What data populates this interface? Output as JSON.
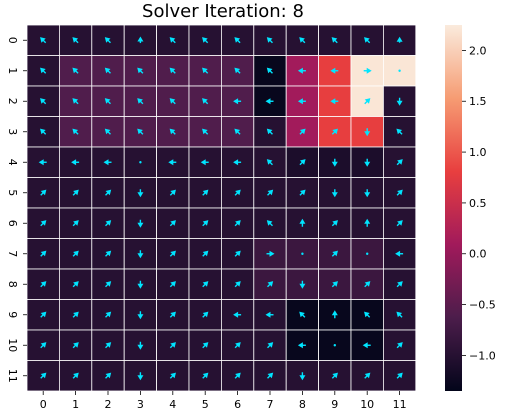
{
  "chart_data": {
    "type": "heatmap",
    "title": "Solver Iteration: 8",
    "x_categories": [
      "0",
      "1",
      "2",
      "3",
      "4",
      "5",
      "6",
      "7",
      "8",
      "9",
      "10",
      "11"
    ],
    "y_categories": [
      "0",
      "1",
      "2",
      "3",
      "4",
      "5",
      "6",
      "7",
      "8",
      "9",
      "10",
      "11"
    ],
    "values": [
      [
        -1.0,
        -1.0,
        -1.0,
        -1.0,
        -1.0,
        -1.0,
        -1.0,
        -1.0,
        -1.0,
        -1.0,
        -1.0,
        -1.0
      ],
      [
        -1.0,
        -0.6,
        -0.6,
        -0.6,
        -0.6,
        -0.6,
        -0.6,
        -1.3,
        0.1,
        0.8,
        2.2,
        2.2
      ],
      [
        -1.0,
        -0.6,
        -0.6,
        -0.6,
        -0.6,
        -0.6,
        -0.6,
        -1.3,
        0.1,
        0.8,
        2.2,
        -1.0
      ],
      [
        -1.0,
        -0.6,
        -0.6,
        -0.6,
        -0.6,
        -0.6,
        -0.6,
        -1.0,
        0.1,
        0.8,
        0.8,
        -1.0
      ],
      [
        -1.0,
        -1.0,
        -1.0,
        -1.0,
        -1.0,
        -1.0,
        -1.0,
        -1.0,
        -1.1,
        -1.1,
        -1.1,
        -1.0
      ],
      [
        -1.0,
        -1.0,
        -1.0,
        -1.0,
        -1.0,
        -1.0,
        -1.0,
        -1.0,
        -1.0,
        -1.0,
        -1.0,
        -1.0
      ],
      [
        -1.0,
        -1.0,
        -1.0,
        -1.0,
        -1.0,
        -1.0,
        -1.0,
        -1.0,
        -1.0,
        -1.0,
        -1.0,
        -1.0
      ],
      [
        -1.0,
        -1.0,
        -1.0,
        -1.0,
        -1.0,
        -1.0,
        -1.0,
        -0.8,
        -0.8,
        -0.8,
        -0.8,
        -1.0
      ],
      [
        -1.0,
        -1.0,
        -1.0,
        -1.0,
        -1.0,
        -1.0,
        -1.0,
        -0.8,
        -0.8,
        -0.8,
        -0.8,
        -1.0
      ],
      [
        -1.0,
        -1.0,
        -1.0,
        -1.0,
        -1.0,
        -1.0,
        -1.0,
        -1.0,
        -1.3,
        -1.3,
        -1.3,
        -1.0
      ],
      [
        -1.0,
        -1.0,
        -1.0,
        -1.0,
        -1.0,
        -1.0,
        -1.0,
        -1.0,
        -1.3,
        -1.3,
        -1.3,
        -1.0
      ],
      [
        -1.0,
        -1.0,
        -1.0,
        -1.0,
        -1.0,
        -1.0,
        -1.0,
        -1.0,
        -1.0,
        -1.0,
        -1.0,
        -1.0
      ]
    ],
    "vector_angles_deg": [
      [
        135,
        135,
        135,
        90,
        135,
        135,
        135,
        135,
        135,
        135,
        135,
        90
      ],
      [
        135,
        135,
        135,
        135,
        135,
        135,
        135,
        135,
        180,
        180,
        0,
        0
      ],
      [
        135,
        135,
        135,
        135,
        135,
        135,
        180,
        180,
        180,
        180,
        45,
        270
      ],
      [
        135,
        135,
        135,
        135,
        135,
        135,
        135,
        135,
        45,
        45,
        270,
        135
      ],
      [
        180,
        180,
        180,
        180,
        180,
        180,
        180,
        135,
        45,
        270,
        270,
        45
      ],
      [
        45,
        45,
        45,
        270,
        45,
        45,
        45,
        45,
        45,
        270,
        270,
        45
      ],
      [
        45,
        45,
        45,
        270,
        45,
        45,
        45,
        135,
        90,
        45,
        90,
        45
      ],
      [
        45,
        45,
        45,
        270,
        45,
        45,
        45,
        0,
        0,
        45,
        0,
        180
      ],
      [
        45,
        45,
        45,
        270,
        45,
        45,
        45,
        45,
        270,
        45,
        45,
        45
      ],
      [
        45,
        45,
        45,
        270,
        45,
        45,
        180,
        180,
        135,
        90,
        135,
        135
      ],
      [
        45,
        45,
        45,
        270,
        45,
        45,
        45,
        45,
        180,
        0,
        180,
        45
      ],
      [
        45,
        45,
        45,
        270,
        45,
        45,
        45,
        45,
        270,
        45,
        45,
        45
      ]
    ],
    "vector_magnitudes": [
      [
        1,
        1,
        1,
        0.8,
        1,
        1,
        1,
        1,
        1,
        1,
        1,
        0.7
      ],
      [
        1,
        1,
        1,
        1,
        1,
        1,
        1,
        1,
        1,
        1,
        1,
        0.2
      ],
      [
        1,
        1,
        1,
        1,
        1,
        1,
        1,
        1,
        1,
        1,
        1,
        1
      ],
      [
        1,
        1,
        1,
        1,
        1,
        1,
        1,
        1,
        1,
        1,
        1,
        1
      ],
      [
        1,
        1,
        1,
        0.2,
        1,
        1,
        1,
        1,
        1,
        1,
        1,
        1
      ],
      [
        1,
        1,
        1,
        1,
        1,
        1,
        1,
        1,
        1,
        1,
        1,
        1
      ],
      [
        1,
        1,
        1,
        1,
        1,
        1,
        1,
        1,
        1,
        1,
        1,
        1
      ],
      [
        1,
        1,
        1,
        1,
        1,
        1,
        1,
        1,
        0.2,
        1,
        0.3,
        1
      ],
      [
        1,
        1,
        1,
        1,
        1,
        1,
        1,
        1,
        1,
        1,
        1,
        1
      ],
      [
        1,
        1,
        1,
        1,
        1,
        1,
        1,
        1,
        1,
        1,
        1,
        1
      ],
      [
        1,
        1,
        1,
        1,
        1,
        1,
        1,
        1,
        1,
        0.2,
        1,
        1
      ],
      [
        1,
        1,
        1,
        1,
        1,
        1,
        1,
        1,
        1,
        1,
        1,
        1
      ]
    ],
    "vector_color": "#00e5ff",
    "colorbar": {
      "ticks": [
        2.0,
        1.5,
        1.0,
        0.5,
        0.0,
        -0.5,
        -1.0
      ],
      "tick_labels": [
        "2.0",
        "1.5",
        "1.0",
        "0.5",
        "0.0",
        "−0.5",
        "−1.0"
      ],
      "range": [
        -1.35,
        2.25
      ]
    },
    "colormap_stops": [
      "#03051a",
      "#4c1d4b",
      "#a11a5b",
      "#e83f3f",
      "#f69c73",
      "#faebdd"
    ],
    "grid_line_color": "#ffffff"
  }
}
